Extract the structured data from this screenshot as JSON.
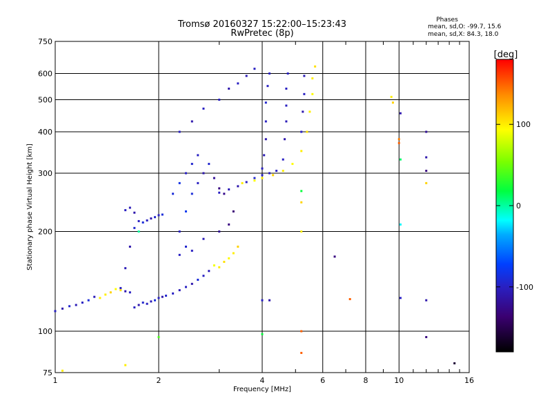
{
  "header": {
    "title": "Tromsø 20160327 15:22:00–15:23:43",
    "subtitle": "RwPretec (8p)",
    "stats_heading": "Phases",
    "stats_line1": "mean, sd,O: -99.7, 15.6",
    "stats_line2": "mean, sd,X:  84.3, 18.0"
  },
  "colorbar": {
    "label": "[deg]",
    "ticks": [
      "100",
      "0",
      "-100"
    ],
    "tick_values": [
      100,
      0,
      -100
    ],
    "range": [
      -180,
      180
    ]
  },
  "chart_data": {
    "type": "scatter",
    "xlabel": "Frequency [MHz]",
    "ylabel": "Stationary phase Virtual Height [km]",
    "xscale": "log",
    "yscale": "log",
    "xlim": [
      1,
      16
    ],
    "ylim": [
      75,
      750
    ],
    "xticks": [
      1,
      2,
      4,
      6,
      8,
      10,
      16
    ],
    "xtick_labels": [
      "1",
      "2",
      "4",
      "6",
      "8",
      "10",
      "16"
    ],
    "yticks": [
      75,
      100,
      200,
      300,
      400,
      500,
      600,
      750
    ],
    "ytick_labels": [
      "75",
      "100",
      "200",
      "300",
      "400",
      "500",
      "600",
      "750"
    ],
    "grid": true,
    "color_variable": "phase [deg]",
    "points": [
      [
        1.0,
        115,
        -100
      ],
      [
        1.05,
        117,
        -110
      ],
      [
        1.1,
        119,
        -95
      ],
      [
        1.15,
        120,
        -105
      ],
      [
        1.2,
        122,
        -100
      ],
      [
        1.25,
        124,
        -90
      ],
      [
        1.3,
        127,
        -105
      ],
      [
        1.35,
        126,
        100
      ],
      [
        1.4,
        129,
        100
      ],
      [
        1.45,
        131,
        110
      ],
      [
        1.5,
        134,
        95
      ],
      [
        1.55,
        133,
        105
      ],
      [
        1.6,
        132,
        -110
      ],
      [
        1.65,
        131,
        -100
      ],
      [
        1.7,
        118,
        -100
      ],
      [
        1.75,
        120,
        -110
      ],
      [
        1.8,
        122,
        -95
      ],
      [
        1.85,
        121,
        -100
      ],
      [
        1.9,
        123,
        -105
      ],
      [
        1.95,
        124,
        -90
      ],
      [
        2.0,
        126,
        -100
      ],
      [
        2.05,
        127,
        -110
      ],
      [
        2.1,
        128,
        -95
      ],
      [
        2.2,
        130,
        -100
      ],
      [
        2.3,
        133,
        -105
      ],
      [
        2.4,
        136,
        -100
      ],
      [
        2.5,
        139,
        -110
      ],
      [
        2.6,
        143,
        -90
      ],
      [
        2.7,
        147,
        -100
      ],
      [
        2.8,
        152,
        -105
      ],
      [
        2.9,
        158,
        90
      ],
      [
        3.0,
        156,
        100
      ],
      [
        3.1,
        162,
        105
      ],
      [
        3.2,
        166,
        95
      ],
      [
        3.3,
        172,
        100
      ],
      [
        3.4,
        180,
        110
      ],
      [
        1.55,
        135,
        -100
      ],
      [
        1.6,
        155,
        -105
      ],
      [
        1.65,
        180,
        -110
      ],
      [
        1.7,
        205,
        -95
      ],
      [
        1.75,
        215,
        -100
      ],
      [
        1.8,
        213,
        -90
      ],
      [
        1.85,
        216,
        -100
      ],
      [
        1.9,
        219,
        -110
      ],
      [
        1.95,
        221,
        -95
      ],
      [
        2.0,
        224,
        -100
      ],
      [
        2.05,
        225,
        -90
      ],
      [
        1.6,
        232,
        -100
      ],
      [
        1.65,
        236,
        -105
      ],
      [
        1.7,
        228,
        -110
      ],
      [
        1.75,
        200,
        0
      ],
      [
        2.3,
        200,
        -100
      ],
      [
        2.4,
        230,
        -80
      ],
      [
        2.5,
        260,
        -90
      ],
      [
        2.6,
        280,
        -100
      ],
      [
        2.7,
        300,
        -110
      ],
      [
        2.8,
        320,
        -95
      ],
      [
        2.9,
        290,
        -120
      ],
      [
        3.0,
        270,
        -130
      ],
      [
        3.1,
        260,
        -125
      ],
      [
        2.2,
        260,
        -90
      ],
      [
        2.3,
        280,
        -85
      ],
      [
        2.4,
        300,
        -100
      ],
      [
        2.5,
        320,
        -95
      ],
      [
        2.6,
        340,
        -100
      ],
      [
        2.3,
        170,
        -100
      ],
      [
        2.4,
        180,
        -95
      ],
      [
        2.5,
        175,
        -100
      ],
      [
        2.7,
        190,
        -105
      ],
      [
        3.0,
        200,
        -120
      ],
      [
        3.2,
        210,
        -130
      ],
      [
        3.3,
        230,
        -135
      ],
      [
        3.0,
        262,
        -100
      ],
      [
        3.2,
        268,
        -105
      ],
      [
        3.4,
        274,
        -110
      ],
      [
        3.6,
        282,
        -100
      ],
      [
        3.8,
        290,
        -95
      ],
      [
        4.0,
        296,
        -100
      ],
      [
        4.2,
        300,
        -105
      ],
      [
        4.4,
        305,
        -100
      ],
      [
        3.5,
        280,
        100
      ],
      [
        3.8,
        285,
        95
      ],
      [
        4.0,
        290,
        100
      ],
      [
        4.3,
        296,
        110
      ],
      [
        4.6,
        305,
        100
      ],
      [
        4.9,
        320,
        95
      ],
      [
        5.2,
        350,
        100
      ],
      [
        5.4,
        400,
        105
      ],
      [
        5.5,
        460,
        100
      ],
      [
        5.6,
        520,
        95
      ],
      [
        5.6,
        580,
        100
      ],
      [
        5.7,
        630,
        105
      ],
      [
        4.0,
        310,
        -100
      ],
      [
        4.05,
        340,
        -105
      ],
      [
        4.1,
        380,
        -110
      ],
      [
        4.1,
        430,
        -100
      ],
      [
        4.1,
        490,
        -95
      ],
      [
        4.15,
        550,
        -100
      ],
      [
        4.2,
        600,
        -100
      ],
      [
        4.6,
        330,
        -100
      ],
      [
        4.65,
        380,
        -110
      ],
      [
        4.7,
        430,
        -105
      ],
      [
        4.7,
        480,
        -100
      ],
      [
        4.7,
        540,
        -100
      ],
      [
        4.75,
        600,
        -100
      ],
      [
        5.2,
        400,
        -100
      ],
      [
        5.25,
        460,
        -110
      ],
      [
        5.3,
        520,
        -100
      ],
      [
        5.3,
        590,
        -105
      ],
      [
        3.0,
        500,
        -100
      ],
      [
        3.2,
        540,
        -110
      ],
      [
        3.4,
        560,
        -100
      ],
      [
        3.6,
        590,
        -105
      ],
      [
        3.8,
        620,
        -100
      ],
      [
        2.7,
        470,
        -100
      ],
      [
        2.5,
        430,
        -110
      ],
      [
        2.3,
        400,
        -100
      ],
      [
        10.1,
        455,
        -110
      ],
      [
        10.1,
        330,
        10
      ],
      [
        10.1,
        210,
        -20
      ],
      [
        10.1,
        126,
        -100
      ],
      [
        12.0,
        400,
        -120
      ],
      [
        12.0,
        335,
        -110
      ],
      [
        12.0,
        305,
        -130
      ],
      [
        12.0,
        280,
        110
      ],
      [
        12.0,
        124,
        -110
      ],
      [
        12.0,
        96,
        -130
      ],
      [
        14.5,
        80,
        -160
      ],
      [
        9.5,
        510,
        100
      ],
      [
        9.6,
        490,
        110
      ],
      [
        10.0,
        380,
        140
      ],
      [
        10.0,
        370,
        150
      ],
      [
        7.2,
        125,
        150
      ],
      [
        6.5,
        168,
        -130
      ],
      [
        5.2,
        100,
        150
      ],
      [
        5.2,
        86,
        150
      ],
      [
        5.2,
        200,
        100
      ],
      [
        5.2,
        245,
        110
      ],
      [
        5.2,
        265,
        20
      ],
      [
        4.0,
        124,
        -100
      ],
      [
        4.2,
        124,
        -110
      ],
      [
        4.0,
        98,
        20
      ],
      [
        2.0,
        96,
        40
      ],
      [
        1.6,
        79,
        100
      ],
      [
        1.05,
        76,
        100
      ]
    ]
  }
}
